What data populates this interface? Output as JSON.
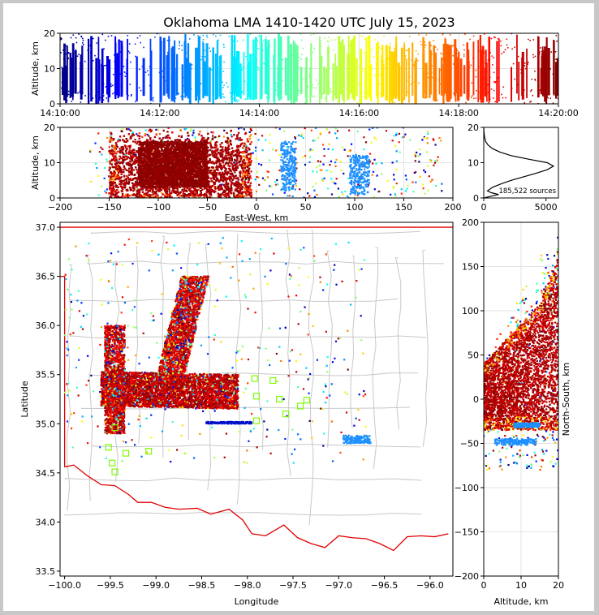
{
  "figure": {
    "title": "Oklahoma LMA 1410-1420 UTC July 15, 2023",
    "source_count": "185,522 sources"
  },
  "chart_data": [
    {
      "type": "scatter",
      "panel": "altitude-time",
      "xlabel": "",
      "ylabel": "Altitude, km",
      "xlim": [
        "14:10:00",
        "14:20:00"
      ],
      "ylim": [
        0,
        20
      ],
      "xticks": [
        "14:10:00",
        "14:12:00",
        "14:14:00",
        "14:16:00",
        "14:18:00",
        "14:20:00"
      ],
      "yticks": [
        0,
        10,
        20
      ],
      "color_encoding": "time (jet colormap, blue early to red late)",
      "clusters": [
        {
          "t_minutes": [
            0.0,
            1.35
          ],
          "alt": [
            0.5,
            19.5
          ],
          "color": "#0010c8"
        },
        {
          "t_minutes": [
            2.0,
            3.3
          ],
          "alt": [
            0.5,
            19.5
          ],
          "color": "#10a0ff"
        },
        {
          "t_minutes": [
            3.3,
            4.6
          ],
          "alt": [
            0.5,
            19.5
          ],
          "color": "#30f0d0"
        },
        {
          "t_minutes": [
            4.6,
            6.3
          ],
          "alt": [
            0.5,
            19.5
          ],
          "color": "#a0ff60"
        },
        {
          "t_minutes": [
            6.3,
            7.5
          ],
          "alt": [
            0.5,
            19.5
          ],
          "color": "#ffd000"
        },
        {
          "t_minutes": [
            7.5,
            8.6
          ],
          "alt": [
            0.5,
            19.5
          ],
          "color": "#ff5000"
        },
        {
          "t_minutes": [
            8.6,
            10.0
          ],
          "alt": [
            0.5,
            19.5
          ],
          "color": "#c00000"
        }
      ],
      "grid": true
    },
    {
      "type": "scatter",
      "panel": "altitude-eastwest",
      "xlabel": "East-West, km",
      "ylabel": "Altitude, km",
      "xlim": [
        -200,
        200
      ],
      "ylim": [
        0,
        20
      ],
      "xticks": [
        -200,
        -150,
        -100,
        -50,
        0,
        50,
        100,
        150,
        200
      ],
      "yticks": [
        0,
        10,
        20
      ],
      "dense_region": {
        "x": [
          -150,
          -5
        ],
        "alt": [
          0,
          20
        ],
        "color": "#c00000"
      },
      "sparse_groups": [
        {
          "x": [
            25,
            40
          ],
          "alt": [
            2,
            16
          ],
          "color": "#1e90ff"
        },
        {
          "x": [
            95,
            115
          ],
          "alt": [
            1,
            12
          ],
          "color": "#1e90ff"
        }
      ],
      "grid": true
    },
    {
      "type": "line",
      "panel": "altitude-histogram",
      "xlabel": "",
      "ylabel": "",
      "xlim": [
        0,
        6000
      ],
      "ylim": [
        0,
        20
      ],
      "xticks": [
        0,
        5000
      ],
      "yticks": [
        0,
        10,
        20
      ],
      "profile": {
        "alt": [
          0,
          0.5,
          1,
          1.5,
          2,
          3,
          4,
          5,
          6,
          7,
          8,
          9,
          10,
          11,
          12,
          13,
          14,
          15,
          16,
          17,
          18,
          19,
          20
        ],
        "count": [
          0,
          600,
          1200,
          600,
          300,
          700,
          1400,
          2200,
          3200,
          4200,
          5100,
          5600,
          5100,
          3600,
          2200,
          1300,
          700,
          350,
          150,
          80,
          40,
          15,
          5
        ]
      }
    },
    {
      "type": "scatter",
      "panel": "plan-view-map",
      "xlabel": "Longitude",
      "ylabel": "Latitude",
      "xlim": [
        -100.05,
        -95.75
      ],
      "ylim": [
        33.45,
        37.05
      ],
      "xticks": [
        -100.0,
        -99.5,
        -99.0,
        -98.5,
        -98.0,
        -97.5,
        -97.0,
        -96.5,
        -96.0
      ],
      "yticks": [
        33.5,
        34.0,
        34.5,
        35.0,
        35.5,
        36.0,
        36.5,
        37.0
      ],
      "dense_regions": [
        {
          "lon": [
            -99.6,
            -98.1
          ],
          "lat": [
            35.15,
            35.55
          ],
          "color": "#c00000"
        },
        {
          "lon": [
            -98.8,
            -98.5
          ],
          "lat": [
            35.5,
            36.4
          ],
          "color": "#c00000"
        },
        {
          "lon": [
            -99.5,
            -99.3
          ],
          "lat": [
            34.9,
            35.9
          ],
          "color": "#c00000"
        }
      ],
      "sparse_groups": [
        {
          "lon": [
            -98.45,
            -97.95
          ],
          "lat": [
            35.0,
            35.02
          ],
          "color": "#0010c8"
        },
        {
          "lon": [
            -96.95,
            -96.65
          ],
          "lat": [
            34.8,
            34.88
          ],
          "color": "#1e90ff"
        }
      ],
      "stations": [
        [
          -99.45,
          34.96
        ],
        [
          -99.52,
          34.76
        ],
        [
          -99.48,
          34.6
        ],
        [
          -99.45,
          34.51
        ],
        [
          -99.33,
          34.7
        ],
        [
          -99.08,
          34.72
        ],
        [
          -97.92,
          35.46
        ],
        [
          -97.72,
          35.44
        ],
        [
          -97.9,
          35.28
        ],
        [
          -97.65,
          35.25
        ],
        [
          -97.35,
          35.24
        ],
        [
          -97.42,
          35.18
        ],
        [
          -97.9,
          35.03
        ],
        [
          -97.58,
          35.1
        ]
      ],
      "station_color": "#7cfc00",
      "boundary_color": "#ff0000"
    },
    {
      "type": "scatter",
      "panel": "northsouth-altitude",
      "xlabel": "Altitude, km",
      "ylabel": "North-South, km",
      "xlim": [
        0,
        20
      ],
      "ylim": [
        -200,
        200
      ],
      "xticks": [
        0,
        10,
        20
      ],
      "yticks": [
        -200,
        -150,
        -100,
        -50,
        0,
        50,
        100,
        150,
        200
      ],
      "dense_region": {
        "alt": [
          0,
          20
        ],
        "ns": [
          -35,
          130
        ],
        "color": "#c00000"
      },
      "sparse_groups": [
        {
          "alt": [
            3,
            14
          ],
          "ns": [
            -52,
            -45
          ],
          "color": "#1e90ff"
        },
        {
          "alt": [
            8,
            15
          ],
          "ns": [
            -32,
            -27
          ],
          "color": "#1e90ff"
        }
      ],
      "grid": true
    }
  ]
}
